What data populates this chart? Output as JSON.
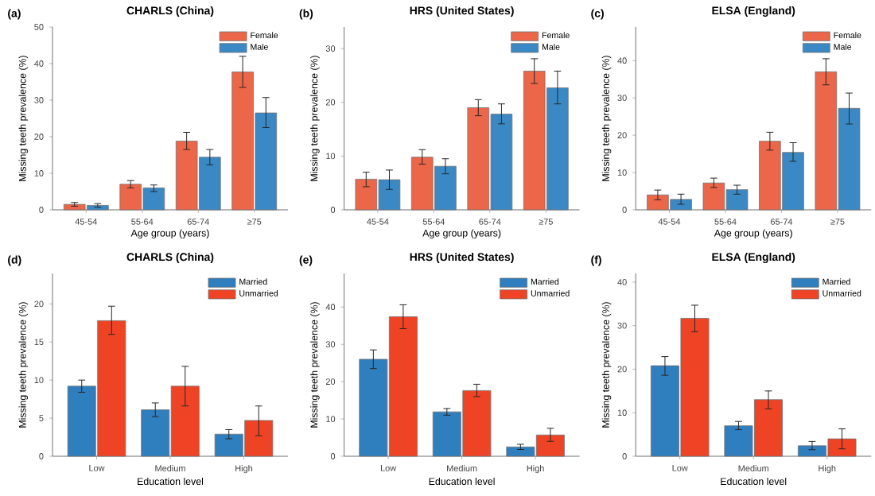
{
  "chart_data": [
    {
      "type": "bar",
      "title": "CHARLS (China)",
      "xlabel": "Age group (years)",
      "ylabel": "Missing teeth prevalence (%)",
      "annotations": [
        "(a)"
      ],
      "categories": [
        "45-54",
        "55-64",
        "65-74",
        "≥75"
      ],
      "ylim": [
        0,
        50
      ],
      "yticks": [
        0,
        10,
        20,
        30,
        40,
        50
      ],
      "legend": "top right",
      "series": [
        {
          "name": "Female",
          "color": "#ec6649",
          "values": [
            1.5,
            7.0,
            18.8,
            37.7
          ],
          "errors": [
            [
              1.0,
              2.0
            ],
            [
              6.0,
              8.0
            ],
            [
              16.5,
              21.2
            ],
            [
              33.5,
              42.0
            ]
          ]
        },
        {
          "name": "Male",
          "color": "#3a89c5",
          "values": [
            1.2,
            6.0,
            14.4,
            26.5
          ],
          "errors": [
            [
              0.7,
              1.7
            ],
            [
              5.0,
              6.8
            ],
            [
              12.3,
              16.5
            ],
            [
              22.5,
              30.7
            ]
          ]
        }
      ]
    },
    {
      "type": "bar",
      "title": "HRS (United States)",
      "xlabel": "Age group (years)",
      "ylabel": "Missing teeth prevalence (%)",
      "annotations": [
        "(b)"
      ],
      "categories": [
        "45-54",
        "55-64",
        "65-74",
        "≥75"
      ],
      "ylim": [
        0,
        34
      ],
      "yticks": [
        0,
        10,
        20,
        30
      ],
      "legend": "top right",
      "series": [
        {
          "name": "Female",
          "color": "#ec6649",
          "values": [
            5.7,
            9.8,
            19.0,
            25.8
          ],
          "errors": [
            [
              4.3,
              7.0
            ],
            [
              8.5,
              11.2
            ],
            [
              17.5,
              20.5
            ],
            [
              23.5,
              28.1
            ]
          ]
        },
        {
          "name": "Male",
          "color": "#3a89c5",
          "values": [
            5.6,
            8.1,
            17.8,
            22.7
          ],
          "errors": [
            [
              3.8,
              7.4
            ],
            [
              6.7,
              9.5
            ],
            [
              16.0,
              19.7
            ],
            [
              19.7,
              25.8
            ]
          ]
        }
      ]
    },
    {
      "type": "bar",
      "title": "ELSA (England)",
      "xlabel": "Age group (years)",
      "ylabel": "Missing teeth prevalence (%)",
      "annotations": [
        "(c)"
      ],
      "categories": [
        "45-54",
        "55-64",
        "65-74",
        "≥75"
      ],
      "ylim": [
        0,
        49
      ],
      "yticks": [
        0,
        10,
        20,
        30,
        40
      ],
      "legend": "top right",
      "series": [
        {
          "name": "Female",
          "color": "#ec6649",
          "values": [
            4.0,
            7.2,
            18.4,
            37.0
          ],
          "errors": [
            [
              2.7,
              5.3
            ],
            [
              6.0,
              8.5
            ],
            [
              16.0,
              20.8
            ],
            [
              33.5,
              40.5
            ]
          ]
        },
        {
          "name": "Male",
          "color": "#3a89c5",
          "values": [
            2.8,
            5.4,
            15.4,
            27.2
          ],
          "errors": [
            [
              1.5,
              4.2
            ],
            [
              4.2,
              6.6
            ],
            [
              13.0,
              18.0
            ],
            [
              23.0,
              31.3
            ]
          ]
        }
      ]
    },
    {
      "type": "bar",
      "title": "CHARLS (China)",
      "xlabel": "Education level",
      "ylabel": "Missing teeth prevalence (%)",
      "annotations": [
        "(d)"
      ],
      "categories": [
        "Low",
        "Medium",
        "High"
      ],
      "ylim": [
        0,
        24
      ],
      "yticks": [
        0,
        5,
        10,
        15,
        20
      ],
      "legend": "top right",
      "series": [
        {
          "name": "Married",
          "color": "#2f7ebd",
          "values": [
            9.2,
            6.1,
            2.9
          ],
          "errors": [
            [
              8.4,
              10.0
            ],
            [
              5.2,
              7.0
            ],
            [
              2.3,
              3.5
            ]
          ]
        },
        {
          "name": "Unmarried",
          "color": "#ef4326",
          "values": [
            17.8,
            9.2,
            4.7
          ],
          "errors": [
            [
              16.0,
              19.7
            ],
            [
              6.6,
              11.8
            ],
            [
              2.7,
              6.6
            ]
          ]
        }
      ]
    },
    {
      "type": "bar",
      "title": "HRS (United States)",
      "xlabel": "Education level",
      "ylabel": "Missing teeth prevalence (%)",
      "annotations": [
        "(e)"
      ],
      "categories": [
        "Low",
        "Medium",
        "High"
      ],
      "ylim": [
        0,
        49
      ],
      "yticks": [
        0,
        10,
        20,
        30,
        40
      ],
      "legend": "top right",
      "series": [
        {
          "name": "Married",
          "color": "#2f7ebd",
          "values": [
            26.0,
            11.9,
            2.5
          ],
          "errors": [
            [
              23.5,
              28.5
            ],
            [
              11.0,
              12.8
            ],
            [
              1.8,
              3.2
            ]
          ]
        },
        {
          "name": "Unmarried",
          "color": "#ef4326",
          "values": [
            37.4,
            17.6,
            5.7
          ],
          "errors": [
            [
              34.2,
              40.6
            ],
            [
              16.0,
              19.3
            ],
            [
              4.0,
              7.5
            ]
          ]
        }
      ]
    },
    {
      "type": "bar",
      "title": "ELSA (England)",
      "xlabel": "Education level",
      "ylabel": "Missing teeth prevalence (%)",
      "annotations": [
        "(f)"
      ],
      "categories": [
        "Low",
        "Medium",
        "High"
      ],
      "ylim": [
        0,
        42
      ],
      "yticks": [
        0,
        10,
        20,
        30,
        40
      ],
      "legend": "top right",
      "series": [
        {
          "name": "Married",
          "color": "#2f7ebd",
          "values": [
            20.8,
            7.0,
            2.4
          ],
          "errors": [
            [
              18.6,
              22.9
            ],
            [
              6.1,
              8.0
            ],
            [
              1.5,
              3.4
            ]
          ]
        },
        {
          "name": "Unmarried",
          "color": "#ef4326",
          "values": [
            31.7,
            13.0,
            4.0
          ],
          "errors": [
            [
              28.6,
              34.7
            ],
            [
              10.9,
              15.0
            ],
            [
              1.7,
              6.3
            ]
          ]
        }
      ]
    }
  ]
}
